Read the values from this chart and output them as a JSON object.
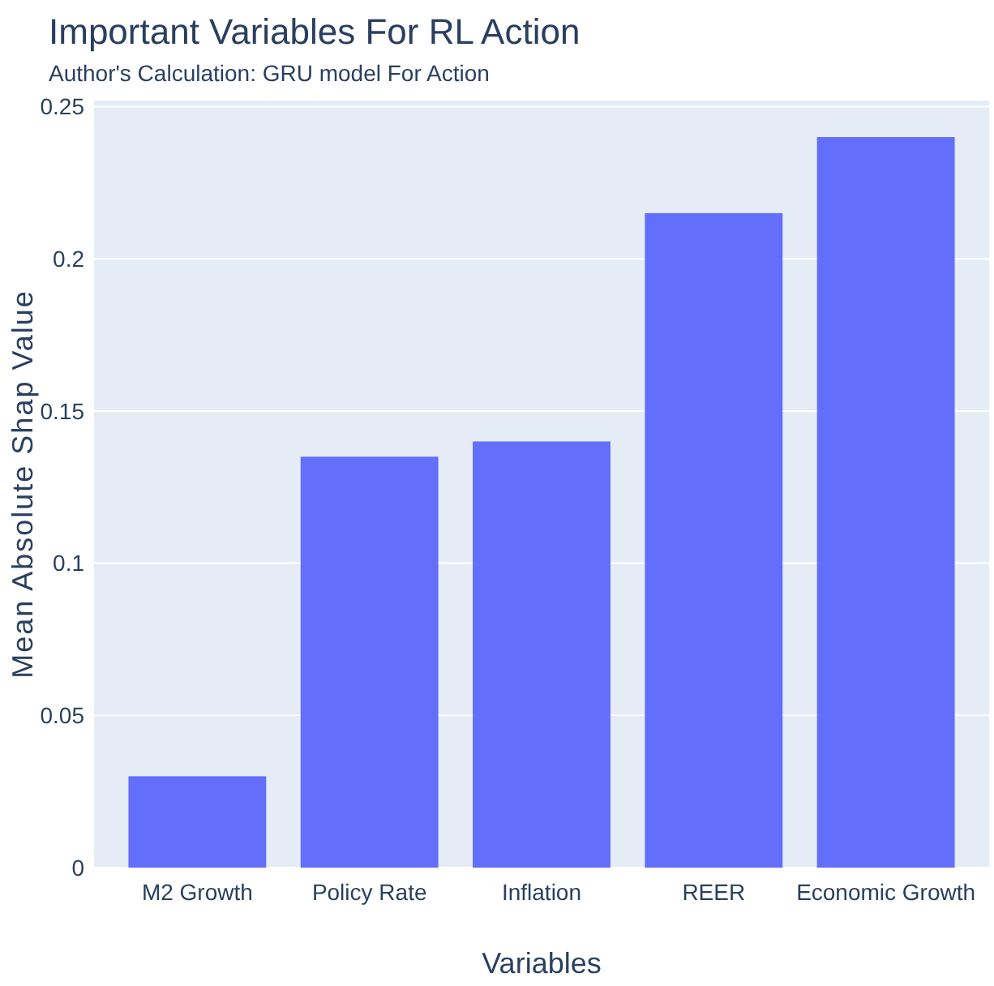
{
  "chart_data": {
    "type": "bar",
    "title": "Important Variables For RL Action",
    "subtitle": "Author's Calculation: GRU model For Action",
    "xlabel": "Variables",
    "ylabel": "Mean Absolute Shap Value",
    "categories": [
      "M2 Growth",
      "Policy Rate",
      "Inflation",
      "REER",
      "Economic Growth"
    ],
    "values": [
      0.03,
      0.135,
      0.14,
      0.215,
      0.24
    ],
    "color": "#636efa",
    "ylim": [
      0,
      0.252
    ],
    "yticks": [
      0,
      0.05,
      0.1,
      0.15,
      0.2,
      0.25
    ],
    "grid": "y"
  }
}
